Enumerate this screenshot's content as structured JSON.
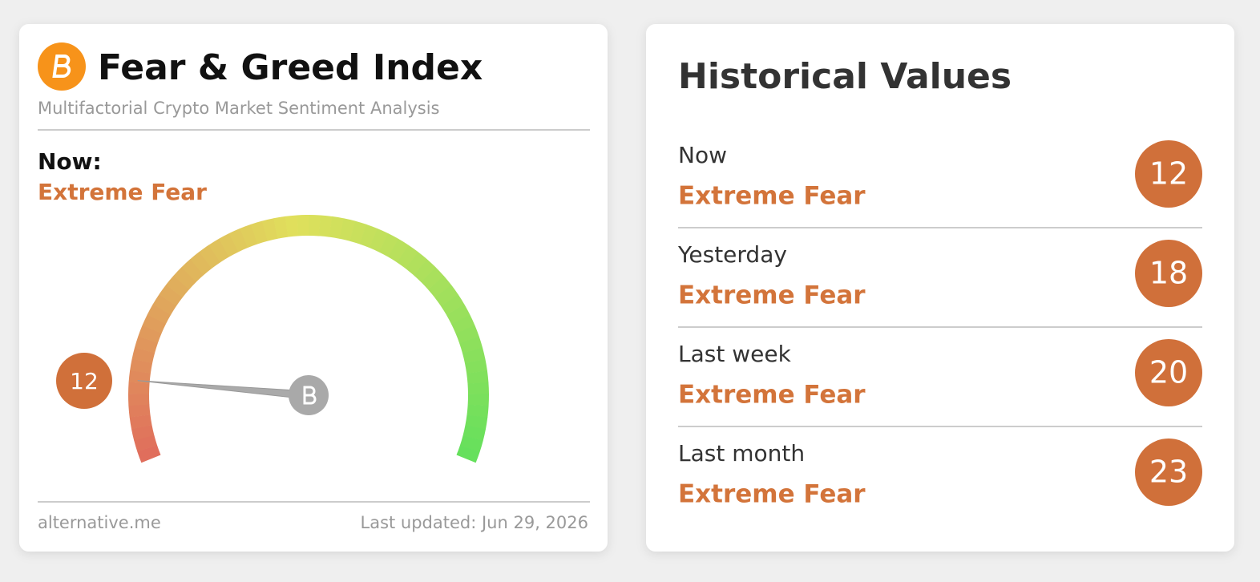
{
  "widget": {
    "title": "Fear & Greed Index",
    "subtitle": "Multifactorial Crypto Market Sentiment Analysis",
    "now_label": "Now:",
    "now_classification": "Extreme Fear",
    "gauge": {
      "value": 12,
      "range": [
        0,
        100
      ]
    },
    "source": "alternative.me",
    "last_updated": "Last updated: Jun 29, 2026"
  },
  "historical": {
    "title": "Historical Values",
    "rows": [
      {
        "label": "Now",
        "classification": "Extreme Fear",
        "value": 12
      },
      {
        "label": "Yesterday",
        "classification": "Extreme Fear",
        "value": 18
      },
      {
        "label": "Last week",
        "classification": "Extreme Fear",
        "value": 20
      },
      {
        "label": "Last month",
        "classification": "Extreme Fear",
        "value": 23
      }
    ]
  }
}
